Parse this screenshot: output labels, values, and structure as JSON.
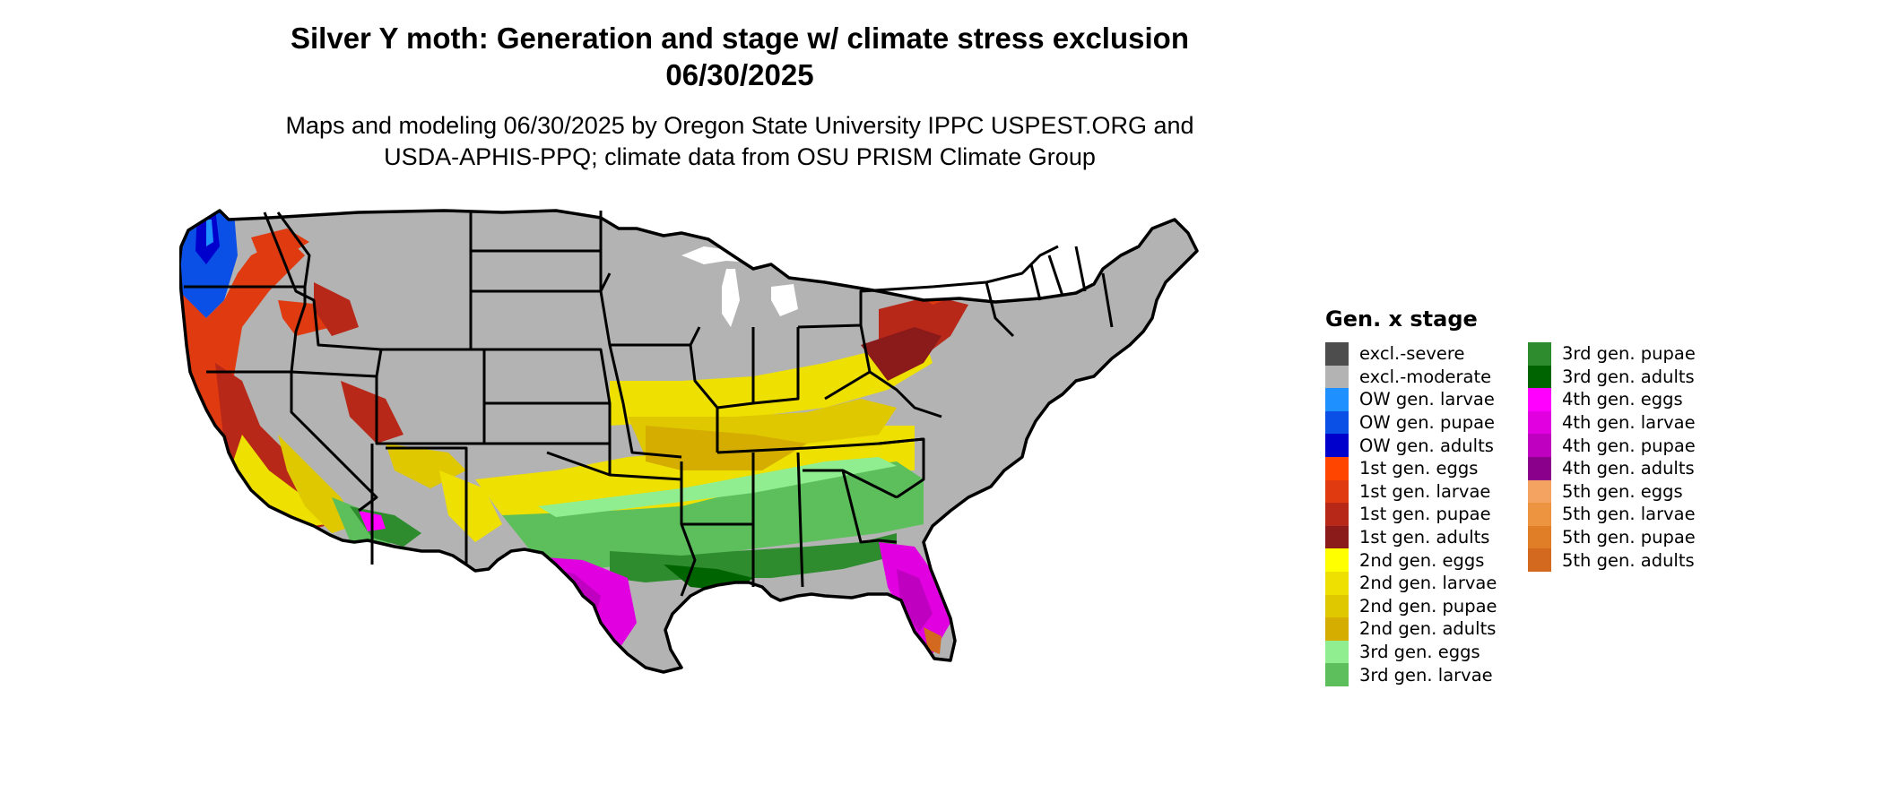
{
  "title": {
    "line1": "Silver Y moth: Generation and stage w/ climate stress exclusion",
    "line2": "06/30/2025"
  },
  "subtitle": {
    "line1": "Maps and modeling 06/30/2025 by Oregon State University IPPC USPEST.ORG and",
    "line2": "USDA-APHIS-PPQ; climate data from OSU PRISM Climate Group"
  },
  "legend": {
    "title": "Gen. x stage",
    "left": [
      {
        "label": "excl.-severe",
        "color": "#4d4d4d"
      },
      {
        "label": "excl.-moderate",
        "color": "#b3b3b3"
      },
      {
        "label": "OW gen. larvae",
        "color": "#1e90ff"
      },
      {
        "label": "OW gen. pupae",
        "color": "#0a50e6"
      },
      {
        "label": "OW gen. adults",
        "color": "#0000cd"
      },
      {
        "label": "1st gen. eggs",
        "color": "#ff4500"
      },
      {
        "label": "1st gen. larvae",
        "color": "#e03a10"
      },
      {
        "label": "1st gen. pupae",
        "color": "#b82818"
      },
      {
        "label": "1st gen. adults",
        "color": "#8b1a1a"
      },
      {
        "label": "2nd gen. eggs",
        "color": "#ffff00"
      },
      {
        "label": "2nd gen. larvae",
        "color": "#eee000"
      },
      {
        "label": "2nd gen. pupae",
        "color": "#e0c800"
      },
      {
        "label": "2nd gen. adults",
        "color": "#d4ad00"
      },
      {
        "label": "3rd gen. eggs",
        "color": "#90ee90"
      },
      {
        "label": "3rd gen. larvae",
        "color": "#5cbf5c"
      }
    ],
    "right": [
      {
        "label": "3rd gen. pupae",
        "color": "#2e8b2e"
      },
      {
        "label": "3rd gen. adults",
        "color": "#006400"
      },
      {
        "label": "4th gen. eggs",
        "color": "#ff00ff"
      },
      {
        "label": "4th gen. larvae",
        "color": "#e000e0"
      },
      {
        "label": "4th gen. pupae",
        "color": "#c000c0"
      },
      {
        "label": "4th gen. adults",
        "color": "#8b008b"
      },
      {
        "label": "5th gen. eggs",
        "color": "#f4a460"
      },
      {
        "label": "5th gen. larvae",
        "color": "#ec9440"
      },
      {
        "label": "5th gen. pupae",
        "color": "#e07e28"
      },
      {
        "label": "5th gen. adults",
        "color": "#d2691e"
      }
    ]
  }
}
